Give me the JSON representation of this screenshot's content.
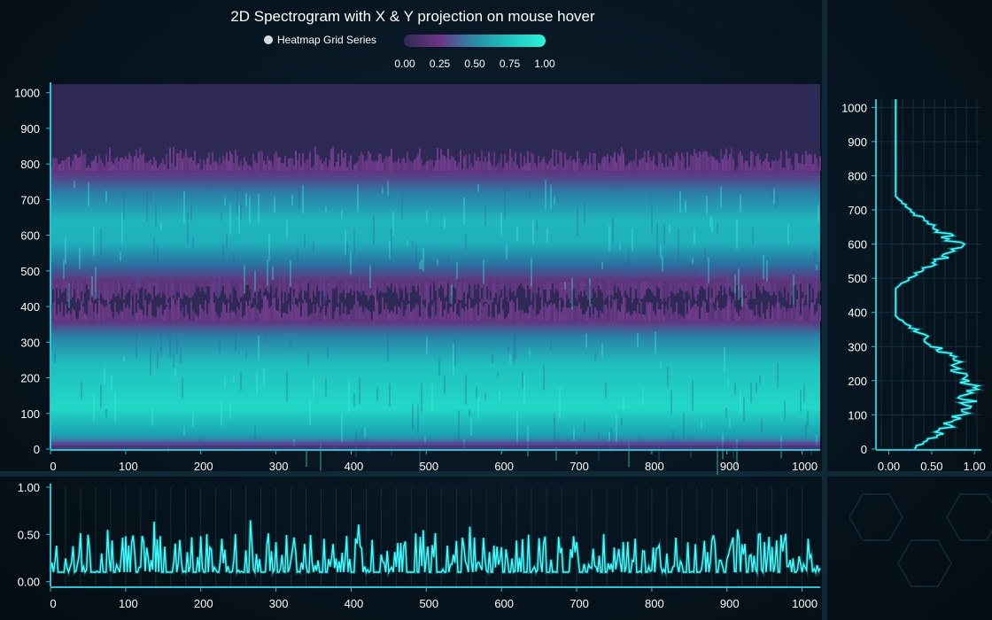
{
  "title": "2D Spectrogram with X & Y projection on mouse hover",
  "legend": {
    "series_name": "Heatmap Grid Series",
    "scale_ticks": [
      "0.00",
      "0.25",
      "0.50",
      "0.75",
      "1.00"
    ],
    "gradient_colors": [
      "#2f2a55",
      "#6a3585",
      "#2a8aa8",
      "#1cc6c0",
      "#2ff2d8"
    ]
  },
  "colors": {
    "axis": "#27c3d4",
    "projection_line": "#3ffcff",
    "background": "#06121b"
  },
  "chart_data": [
    {
      "name": "spectrogram",
      "type": "heatmap",
      "title": "2D Spectrogram with X & Y projection on mouse hover",
      "legend": "Heatmap Grid Series",
      "xlim": [
        0,
        1024
      ],
      "ylim": [
        0,
        1024
      ],
      "x_ticks": [
        0,
        100,
        200,
        300,
        400,
        500,
        600,
        700,
        800,
        900,
        1000
      ],
      "y_ticks": [
        0,
        100,
        200,
        300,
        400,
        500,
        600,
        700,
        800,
        900,
        1000
      ],
      "value_range": [
        0,
        1
      ],
      "bands": [
        {
          "y_from": 0,
          "y_to": 400,
          "peak_y": 200,
          "max_intensity": 0.95
        },
        {
          "y_from": 460,
          "y_to": 820,
          "peak_y": 630,
          "max_intensity": 0.8
        }
      ],
      "background_intensity": 0.0
    },
    {
      "name": "y-projection",
      "type": "line",
      "xlim": [
        -0.15,
        1.08
      ],
      "ylim": [
        0,
        1024
      ],
      "x_ticks": [
        "0.00",
        "0.50",
        "1.00"
      ],
      "y_ticks": [
        0,
        100,
        200,
        300,
        400,
        500,
        600,
        700,
        800,
        900,
        1000
      ],
      "points": [
        {
          "y": 1024,
          "x": 0.08
        },
        {
          "y": 740,
          "x": 0.08
        },
        {
          "y": 730,
          "x": 0.12
        },
        {
          "y": 700,
          "x": 0.25
        },
        {
          "y": 660,
          "x": 0.45
        },
        {
          "y": 620,
          "x": 0.7
        },
        {
          "y": 600,
          "x": 0.78
        },
        {
          "y": 580,
          "x": 0.75
        },
        {
          "y": 550,
          "x": 0.55
        },
        {
          "y": 520,
          "x": 0.35
        },
        {
          "y": 490,
          "x": 0.18
        },
        {
          "y": 470,
          "x": 0.08
        },
        {
          "y": 390,
          "x": 0.08
        },
        {
          "y": 380,
          "x": 0.12
        },
        {
          "y": 350,
          "x": 0.3
        },
        {
          "y": 300,
          "x": 0.55
        },
        {
          "y": 250,
          "x": 0.78
        },
        {
          "y": 200,
          "x": 0.9
        },
        {
          "y": 150,
          "x": 0.95
        },
        {
          "y": 100,
          "x": 0.82
        },
        {
          "y": 50,
          "x": 0.6
        },
        {
          "y": 20,
          "x": 0.4
        },
        {
          "y": 0,
          "x": 0.3
        }
      ]
    },
    {
      "name": "x-projection",
      "type": "line",
      "xlim": [
        0,
        1024
      ],
      "ylim": [
        -0.05,
        1.0
      ],
      "x_ticks": [
        0,
        100,
        200,
        300,
        400,
        500,
        600,
        700,
        800,
        900,
        1000
      ],
      "y_ticks": [
        "0.00",
        "0.50",
        "1.00"
      ],
      "baseline": 0.1,
      "typical_peak": 0.45,
      "max_value": 0.67
    }
  ]
}
